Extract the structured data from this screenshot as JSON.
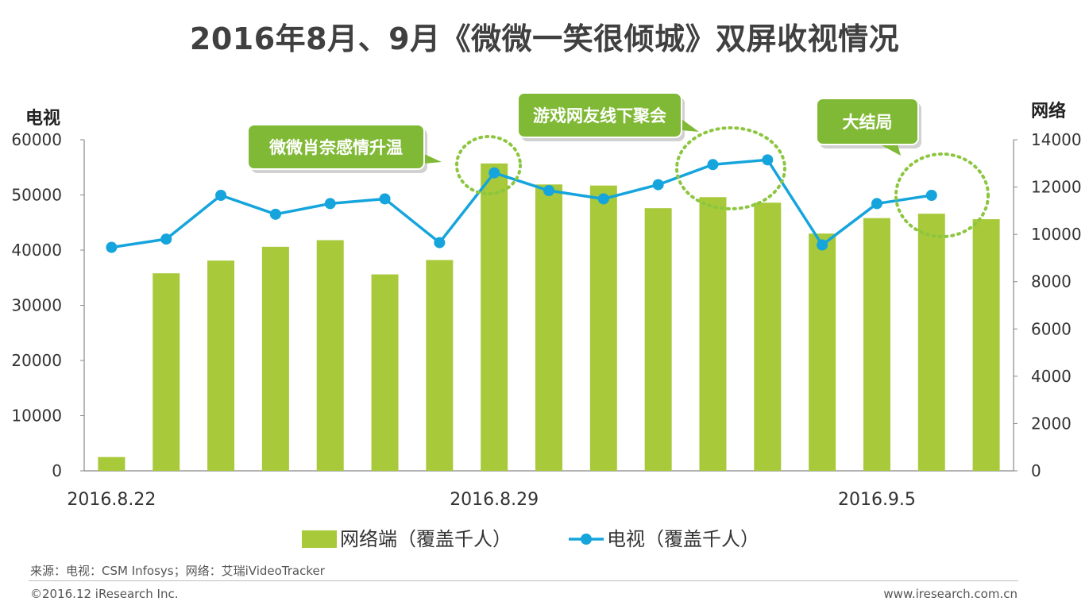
{
  "chart_data": {
    "type": "bar+line",
    "title": "2016年8月、9月《微微一笑很倾城》双屏收视情况",
    "left_axis_title": "电视",
    "right_axis_title": "网络",
    "left_ylim": [
      0,
      60000
    ],
    "left_ticks": [
      "0",
      "10000",
      "20000",
      "30000",
      "40000",
      "50000",
      "60000"
    ],
    "right_ylim": [
      0,
      14000
    ],
    "right_ticks": [
      "0",
      "2000",
      "4000",
      "6000",
      "8000",
      "10000",
      "12000",
      "14000"
    ],
    "x_tick_labels": [
      {
        "index": 0,
        "label": "2016.8.22"
      },
      {
        "index": 7,
        "label": "2016.8.29"
      },
      {
        "index": 14,
        "label": "2016.9.5"
      }
    ],
    "series": [
      {
        "name": "网络端（覆盖千人）",
        "type": "bar",
        "axis": "left",
        "color": "#a7c93a",
        "values": [
          2500,
          35800,
          38100,
          40600,
          41800,
          35600,
          38200,
          55700,
          51900,
          51700,
          47600,
          49600,
          48600,
          43000,
          45800,
          46600,
          45600
        ]
      },
      {
        "name": "电视（覆盖千人）",
        "type": "line",
        "axis": "right",
        "color": "#15a5dc",
        "values": [
          9450,
          9800,
          11650,
          10850,
          11300,
          11500,
          9650,
          12600,
          11850,
          11500,
          12100,
          12950,
          13150,
          9550,
          11300,
          11650
        ]
      }
    ],
    "annotations": [
      {
        "text": "微微肖奈感情升温",
        "target_index": 7
      },
      {
        "text": "游戏网友线下聚会",
        "target_index": 11
      },
      {
        "text": "大结局",
        "target_index": 15
      }
    ],
    "legend_position": "bottom"
  },
  "footer": {
    "source": "来源：电视：CSM Infosys；网络：艾瑞iVideoTracker",
    "copyright": "©2016.12 iResearch Inc.",
    "site": "www.iresearch.com.cn"
  },
  "colors": {
    "bar": "#a7c93a",
    "line": "#15a5dc",
    "callout": "#80b935",
    "dotted": "#8cc63f"
  }
}
